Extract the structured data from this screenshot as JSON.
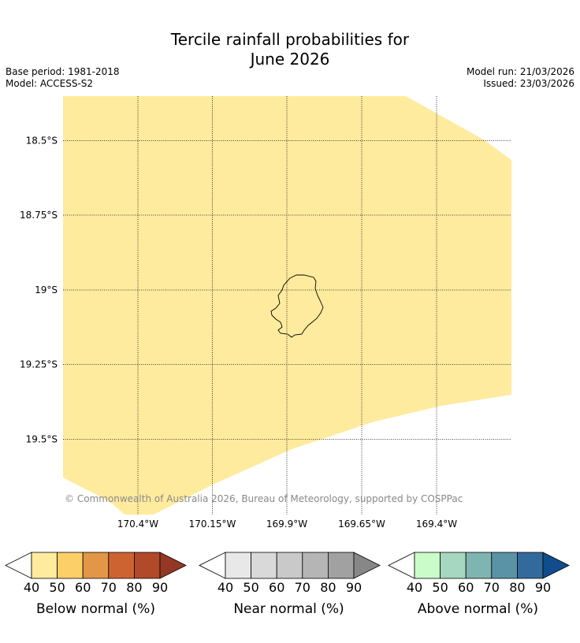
{
  "title": {
    "line1": "Tercile rainfall probabilities for",
    "line2": "June 2026"
  },
  "meta": {
    "base_period": "Base period: 1981-2018",
    "model": "Model: ACCESS-S2",
    "model_run": "Model run: 21/03/2026",
    "issued": "Issued: 23/03/2026"
  },
  "map": {
    "fill_color": "#FEEB9E",
    "fill_category": "Below normal 40-50%",
    "latitude_labels": [
      "18.5°S",
      "18.75°S",
      "19°S",
      "19.25°S",
      "19.5°S"
    ],
    "longitude_labels": [
      "170.4°W",
      "170.15°W",
      "169.9°W",
      "169.65°W",
      "169.4°W"
    ],
    "island": "Niue",
    "copyright": "© Commonwealth of Australia 2026, Bureau of Meteorology, supported by COSPPac"
  },
  "legends": [
    {
      "label": "Below normal (%)",
      "colors": [
        "#FEEB9E",
        "#FDCF68",
        "#E29648",
        "#CE6332",
        "#B14A28",
        "#943824"
      ],
      "ticks": [
        "40",
        "50",
        "60",
        "70",
        "80",
        "90"
      ]
    },
    {
      "label": "Near normal (%)",
      "colors": [
        "#E8E8E8",
        "#D9D9D9",
        "#C9C9C9",
        "#B5B5B5",
        "#A1A1A1",
        "#878787"
      ],
      "ticks": [
        "40",
        "50",
        "60",
        "70",
        "80",
        "90"
      ]
    },
    {
      "label": "Above normal (%)",
      "colors": [
        "#CAFCCA",
        "#A5D8BE",
        "#7FB5B1",
        "#5B93A6",
        "#336A9C",
        "#114D8C"
      ],
      "ticks": [
        "40",
        "50",
        "60",
        "70",
        "80",
        "90"
      ]
    }
  ]
}
